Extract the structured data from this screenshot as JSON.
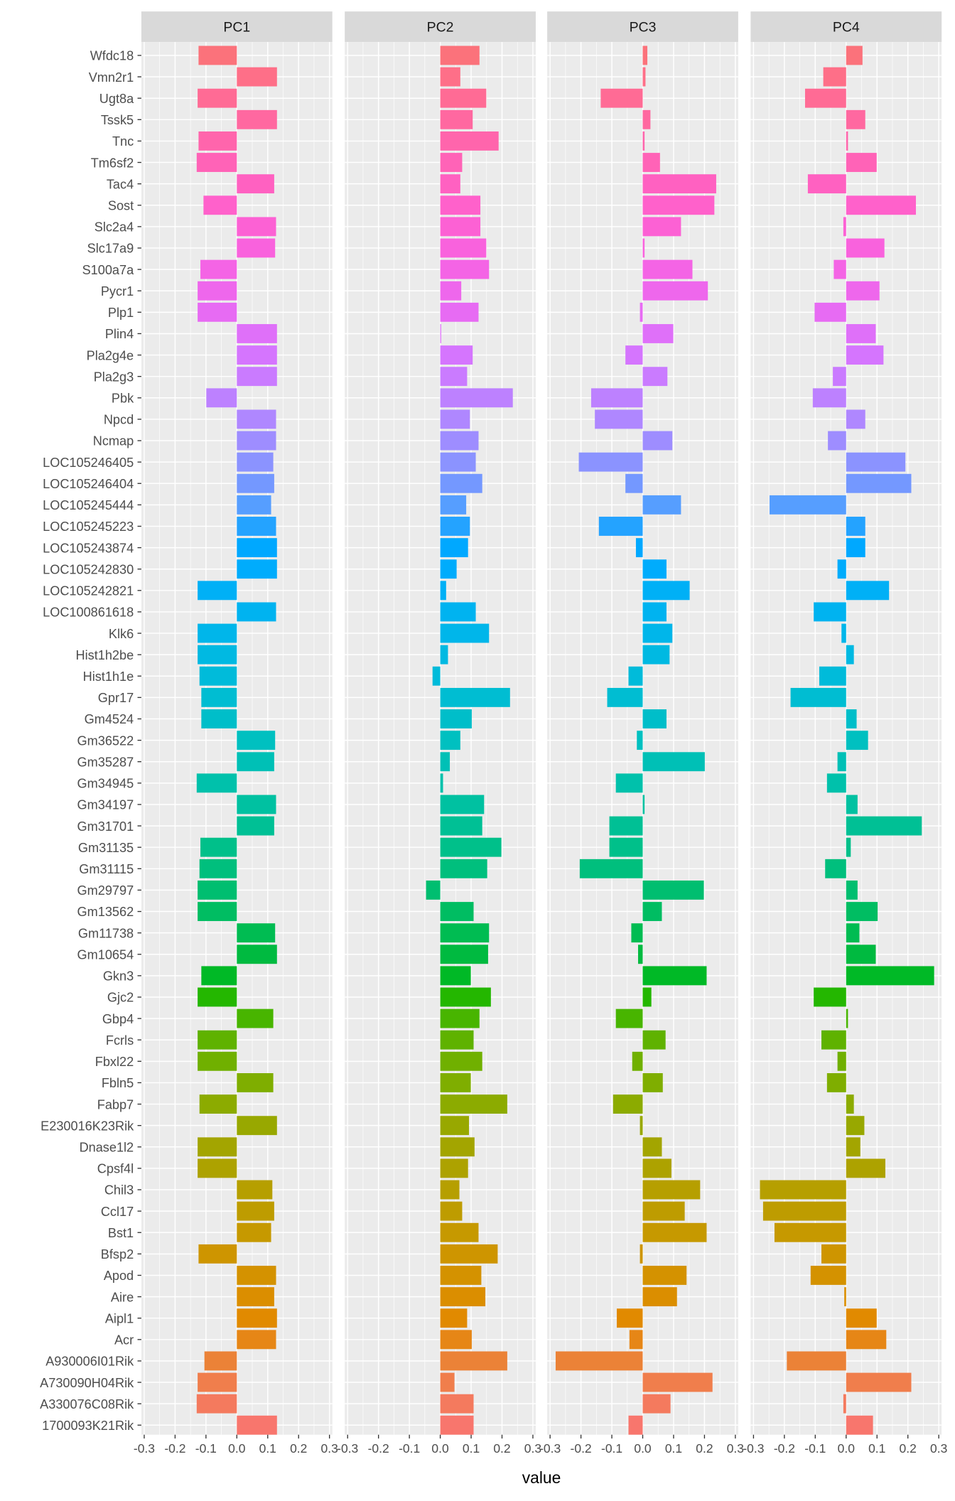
{
  "chart_data": {
    "type": "bar",
    "orientation": "horizontal",
    "xlabel": "value",
    "ylabel": "",
    "xlim": [
      -0.3,
      0.3
    ],
    "xticks": [
      "-0.3",
      "-0.2",
      "-0.1",
      "0.0",
      "0.1",
      "0.2",
      "0.3"
    ],
    "xtick_values": [
      -0.3,
      -0.2,
      -0.1,
      0.0,
      0.1,
      0.2,
      0.3
    ],
    "grid": true,
    "legend": "none",
    "facets": [
      "PC1",
      "PC2",
      "PC3",
      "PC4"
    ],
    "genes": [
      "Wfdc18",
      "Vmn2r1",
      "Ugt8a",
      "Tssk5",
      "Tnc",
      "Tm6sf2",
      "Tac4",
      "Sost",
      "Slc2a4",
      "Slc17a9",
      "S100a7a",
      "Pycr1",
      "Plp1",
      "Plin4",
      "Pla2g4e",
      "Pla2g3",
      "Pbk",
      "Npcd",
      "Ncmap",
      "LOC105246405",
      "LOC105246404",
      "LOC105245444",
      "LOC105245223",
      "LOC105243874",
      "LOC105242830",
      "LOC105242821",
      "LOC100861618",
      "Klk6",
      "Hist1h2be",
      "Hist1h1e",
      "Gpr17",
      "Gm4524",
      "Gm36522",
      "Gm35287",
      "Gm34945",
      "Gm34197",
      "Gm31701",
      "Gm31135",
      "Gm31115",
      "Gm29797",
      "Gm13562",
      "Gm11738",
      "Gm10654",
      "Gkn3",
      "Gjc2",
      "Gbp4",
      "Fcrls",
      "Fbxl22",
      "Fbln5",
      "Fabp7",
      "E230016K23Rik",
      "Dnase1l2",
      "Cpsf4l",
      "Chil3",
      "Ccl17",
      "Bst1",
      "Bfsp2",
      "Apod",
      "Aire",
      "Aipl1",
      "Acr",
      "A930006I01Rik",
      "A730090H04Rik",
      "A330076C08Rik",
      "1700093K21Rik"
    ],
    "series": [
      {
        "name": "PC1",
        "values": [
          -0.124,
          0.13,
          -0.127,
          0.13,
          -0.124,
          -0.13,
          0.121,
          -0.108,
          0.127,
          0.124,
          -0.118,
          -0.127,
          -0.127,
          0.13,
          0.13,
          0.13,
          -0.099,
          0.127,
          0.127,
          0.118,
          0.121,
          0.111,
          0.127,
          0.13,
          0.13,
          -0.127,
          0.127,
          -0.127,
          -0.127,
          -0.121,
          -0.115,
          -0.115,
          0.124,
          0.121,
          -0.13,
          0.127,
          0.121,
          -0.118,
          -0.121,
          -0.127,
          -0.127,
          0.124,
          0.13,
          -0.115,
          -0.127,
          0.118,
          -0.127,
          -0.127,
          0.118,
          -0.121,
          0.13,
          -0.127,
          -0.127,
          0.115,
          0.121,
          0.111,
          -0.124,
          0.127,
          0.121,
          0.13,
          0.127,
          -0.105,
          -0.127,
          -0.13,
          0.13
        ]
      },
      {
        "name": "PC2",
        "values": [
          0.127,
          0.065,
          0.149,
          0.105,
          0.189,
          0.071,
          0.065,
          0.13,
          0.13,
          0.149,
          0.158,
          0.068,
          0.124,
          0.003,
          0.105,
          0.087,
          0.235,
          0.096,
          0.124,
          0.115,
          0.136,
          0.084,
          0.096,
          0.09,
          0.053,
          0.019,
          0.115,
          0.158,
          0.025,
          -0.025,
          0.226,
          0.102,
          0.065,
          0.031,
          0.009,
          0.142,
          0.136,
          0.198,
          0.152,
          -0.046,
          0.108,
          0.158,
          0.155,
          0.099,
          0.164,
          0.127,
          0.108,
          0.136,
          0.099,
          0.217,
          0.093,
          0.111,
          0.09,
          0.062,
          0.071,
          0.124,
          0.186,
          0.133,
          0.146,
          0.087,
          0.102,
          0.217,
          0.046,
          0.108,
          0.108
        ]
      },
      {
        "name": "PC3",
        "values": [
          0.015,
          0.009,
          -0.136,
          0.025,
          0.006,
          0.056,
          0.238,
          0.232,
          0.124,
          0.006,
          0.161,
          0.211,
          -0.009,
          0.099,
          -0.056,
          0.08,
          -0.167,
          -0.155,
          0.096,
          -0.207,
          -0.056,
          0.124,
          -0.142,
          -0.022,
          0.077,
          0.152,
          0.077,
          0.096,
          0.087,
          -0.046,
          -0.115,
          0.077,
          -0.019,
          0.201,
          -0.087,
          0.006,
          -0.108,
          -0.108,
          -0.204,
          0.198,
          0.062,
          -0.037,
          -0.015,
          0.207,
          0.028,
          -0.087,
          0.074,
          -0.034,
          0.065,
          -0.096,
          -0.009,
          0.062,
          0.093,
          0.186,
          0.136,
          0.207,
          -0.009,
          0.142,
          0.111,
          -0.084,
          -0.043,
          -0.282,
          0.226,
          0.09,
          -0.046
        ]
      },
      {
        "name": "PC4",
        "values": [
          0.053,
          -0.074,
          -0.133,
          0.062,
          0.006,
          0.099,
          -0.124,
          0.226,
          -0.009,
          0.124,
          -0.04,
          0.108,
          -0.102,
          0.096,
          0.121,
          -0.043,
          -0.108,
          0.062,
          -0.059,
          0.192,
          0.211,
          -0.248,
          0.062,
          0.062,
          -0.028,
          0.139,
          -0.105,
          -0.015,
          0.025,
          -0.087,
          -0.18,
          0.034,
          0.071,
          -0.028,
          -0.062,
          0.037,
          0.245,
          0.015,
          -0.068,
          0.037,
          0.102,
          0.043,
          0.096,
          0.285,
          -0.105,
          0.006,
          -0.08,
          -0.028,
          -0.062,
          0.025,
          0.059,
          0.046,
          0.127,
          -0.279,
          -0.269,
          -0.232,
          -0.08,
          -0.115,
          -0.006,
          0.099,
          0.13,
          -0.192,
          0.211,
          -0.009,
          0.087
        ]
      }
    ]
  },
  "colors": {
    "panel_background": "#EBEBEB",
    "strip_background": "#D9D9D9",
    "grid": "#FFFFFF"
  }
}
